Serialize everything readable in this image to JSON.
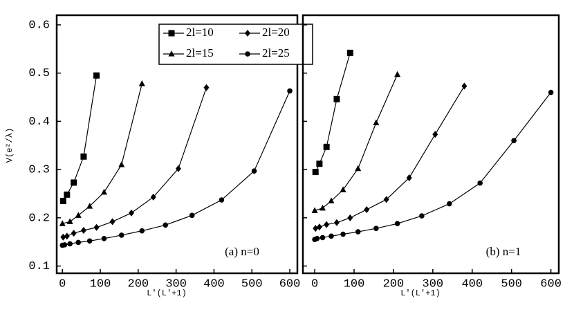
{
  "chart_data": [
    {
      "type": "line",
      "ylabel": "V(e²/λ)",
      "xlabel": "L'(L'+1)",
      "annotation": "(a) n=0",
      "xlim": [
        -15,
        620
      ],
      "ylim": [
        0.085,
        0.62
      ],
      "xticks": [
        0,
        100,
        200,
        300,
        400,
        500,
        600
      ],
      "yticks": [
        0.1,
        0.2,
        0.3,
        0.4,
        0.5,
        0.6
      ],
      "legend": "top",
      "color": "#000000",
      "series": [
        {
          "name": "2l=10",
          "marker": "square",
          "x": [
            2,
            12,
            30,
            56,
            90
          ],
          "values": [
            0.235,
            0.248,
            0.273,
            0.327,
            0.495
          ]
        },
        {
          "name": "2l=15",
          "marker": "triangle",
          "x": [
            0,
            20,
            42,
            72,
            110,
            156,
            210
          ],
          "values": [
            0.188,
            0.192,
            0.205,
            0.224,
            0.253,
            0.31,
            0.478
          ]
        },
        {
          "name": "2l=20",
          "marker": "diamond",
          "x": [
            2,
            12,
            30,
            56,
            90,
            132,
            182,
            240,
            306,
            380
          ],
          "values": [
            0.16,
            0.162,
            0.168,
            0.174,
            0.18,
            0.192,
            0.21,
            0.243,
            0.302,
            0.47
          ]
        },
        {
          "name": "2l=25",
          "marker": "circle",
          "x": [
            0,
            6,
            20,
            42,
            72,
            110,
            156,
            210,
            272,
            342,
            420,
            506,
            600
          ],
          "values": [
            0.143,
            0.144,
            0.146,
            0.149,
            0.152,
            0.157,
            0.164,
            0.173,
            0.185,
            0.205,
            0.237,
            0.297,
            0.463
          ]
        }
      ]
    },
    {
      "type": "line",
      "xlabel": "L'(L'+1)",
      "annotation": "(b) n=1",
      "xlim": [
        -30,
        620
      ],
      "ylim": [
        0.085,
        0.62
      ],
      "xticks": [
        0,
        100,
        200,
        300,
        400,
        500,
        600
      ],
      "yticks": [
        0.1,
        0.2,
        0.3,
        0.4,
        0.5,
        0.6
      ],
      "color": "#000000",
      "series": [
        {
          "marker": "square",
          "x": [
            2,
            12,
            30,
            56,
            90
          ],
          "values": [
            0.295,
            0.312,
            0.347,
            0.446,
            0.542
          ]
        },
        {
          "marker": "triangle",
          "x": [
            0,
            20,
            42,
            72,
            110,
            156,
            210
          ],
          "values": [
            0.215,
            0.22,
            0.235,
            0.258,
            0.302,
            0.397,
            0.497
          ]
        },
        {
          "marker": "diamond",
          "x": [
            2,
            12,
            30,
            56,
            90,
            132,
            182,
            240,
            306,
            380
          ],
          "values": [
            0.178,
            0.181,
            0.186,
            0.19,
            0.2,
            0.217,
            0.238,
            0.283,
            0.373,
            0.473
          ]
        },
        {
          "marker": "circle",
          "x": [
            0,
            6,
            20,
            42,
            72,
            110,
            156,
            210,
            272,
            342,
            420,
            506,
            600
          ],
          "values": [
            0.155,
            0.157,
            0.159,
            0.162,
            0.166,
            0.171,
            0.178,
            0.188,
            0.204,
            0.229,
            0.272,
            0.36,
            0.46
          ]
        }
      ]
    }
  ]
}
